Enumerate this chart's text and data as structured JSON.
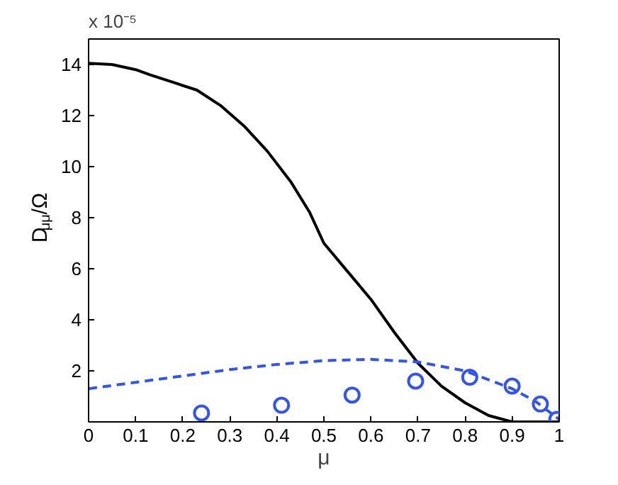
{
  "chart_data": {
    "type": "line",
    "xlabel": "μ",
    "ylabel": "D$_{μμ}$/Ω",
    "annotations": [
      "x 10⁻⁵"
    ],
    "xlim": [
      0,
      1
    ],
    "ylim": [
      0,
      15
    ],
    "xticks": [
      0,
      0.1,
      0.2,
      0.3,
      0.4,
      0.5,
      0.6,
      0.7,
      0.8,
      0.9,
      1
    ],
    "yticks": [
      2,
      4,
      6,
      8,
      10,
      12,
      14
    ],
    "grid": false,
    "series": [
      {
        "type": "line",
        "color": "#000000",
        "line_style": "solid",
        "x": [
          0,
          0.05,
          0.1,
          0.13,
          0.18,
          0.23,
          0.28,
          0.33,
          0.38,
          0.43,
          0.47,
          0.5,
          0.55,
          0.6,
          0.65,
          0.7,
          0.75,
          0.8,
          0.85,
          0.9,
          0.95,
          1
        ],
        "values": [
          14.05,
          14.0,
          13.8,
          13.6,
          13.3,
          13.0,
          12.4,
          11.6,
          10.6,
          9.4,
          8.2,
          7.0,
          5.9,
          4.8,
          3.5,
          2.3,
          1.4,
          0.75,
          0.25,
          0,
          0,
          0
        ]
      },
      {
        "type": "line",
        "color": "#3355ee",
        "line_style": "dashed",
        "x": [
          0,
          0.1,
          0.2,
          0.3,
          0.4,
          0.5,
          0.6,
          0.7,
          0.8,
          0.9,
          0.95,
          1
        ],
        "values": [
          1.3,
          1.55,
          1.8,
          2.05,
          2.25,
          2.4,
          2.45,
          2.35,
          2.0,
          1.3,
          0.8,
          0.1
        ]
      },
      {
        "type": "scatter",
        "color": "#3355ee",
        "marker": "circle",
        "x": [
          0.24,
          0.41,
          0.56,
          0.695,
          0.81,
          0.9,
          0.96,
          0.995
        ],
        "values": [
          0.35,
          0.65,
          1.05,
          1.6,
          1.75,
          1.4,
          0.7,
          0.1
        ]
      }
    ]
  }
}
